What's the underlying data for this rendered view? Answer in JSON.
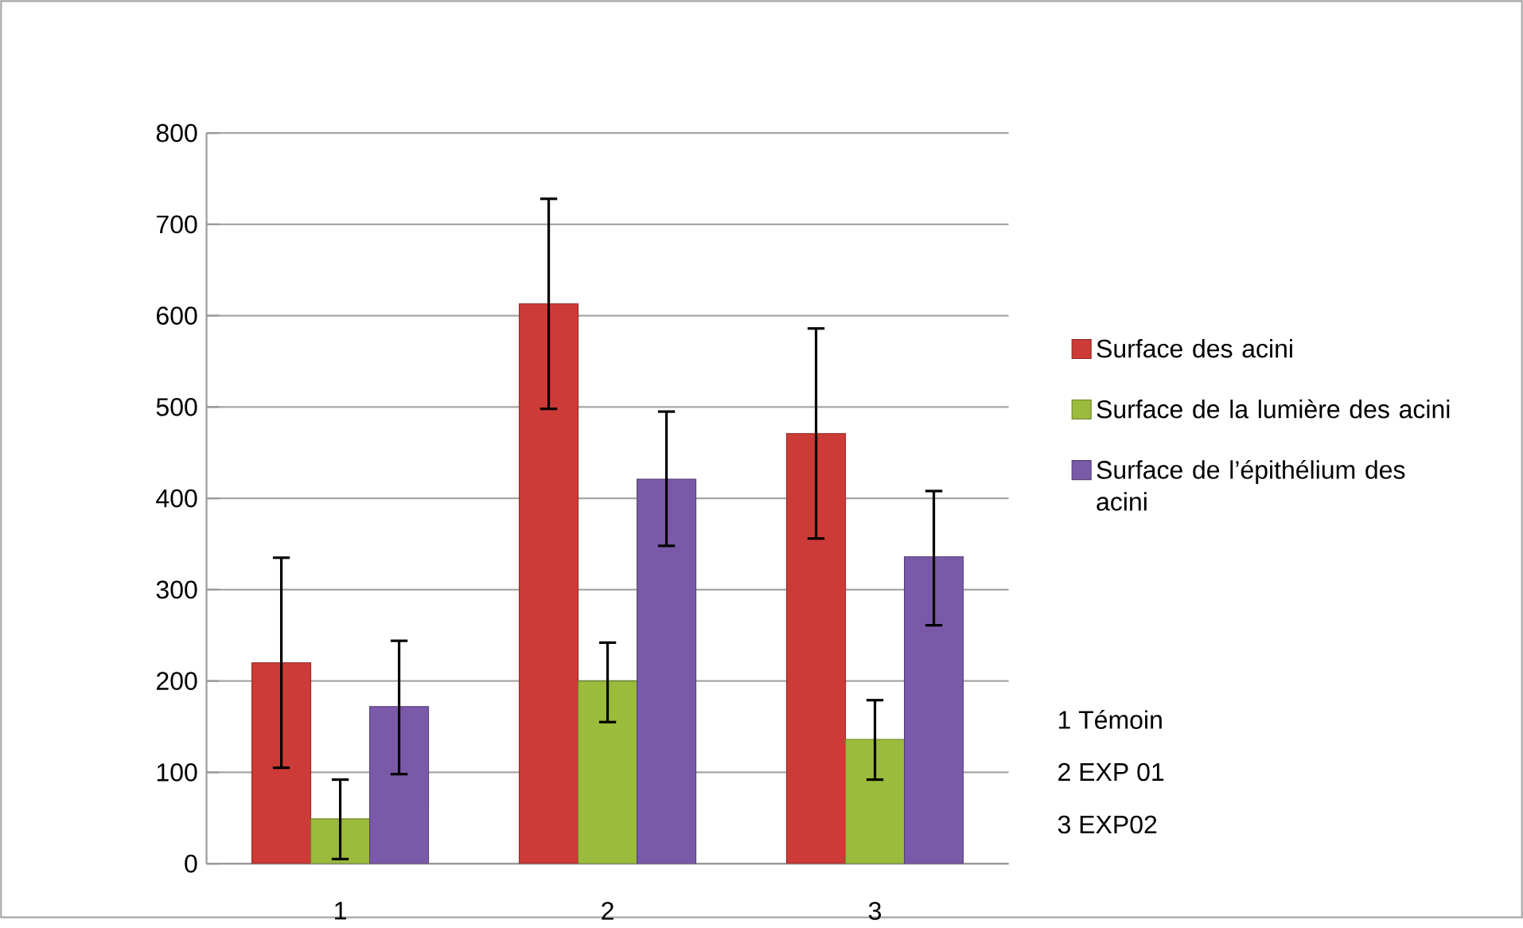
{
  "chart_data": {
    "type": "bar",
    "categories": [
      "1",
      "2",
      "3"
    ],
    "series": [
      {
        "name": "Surface des acini",
        "color": "#cc3b37",
        "values": [
          220,
          613,
          471
        ],
        "errors": [
          [
            105,
            335
          ],
          [
            498,
            728
          ],
          [
            356,
            586
          ]
        ]
      },
      {
        "name": "Surface de la lumière des acini",
        "color": "#9bbb3c",
        "values": [
          49,
          200,
          136
        ],
        "errors": [
          [
            5,
            92
          ],
          [
            155,
            242
          ],
          [
            92,
            179
          ]
        ]
      },
      {
        "name": "Surface de l’épithélium des acini",
        "color": "#7a5aa8",
        "values": [
          172,
          421,
          336
        ],
        "errors": [
          [
            98,
            244
          ],
          [
            348,
            495
          ],
          [
            261,
            408
          ]
        ]
      }
    ],
    "ylim": [
      0,
      800
    ],
    "yticks": [
      0,
      100,
      200,
      300,
      400,
      500,
      600,
      700,
      800
    ],
    "grid": "y",
    "legend": "right",
    "annotations": [
      "1 Témoin",
      "2 EXP 01",
      "3 EXP02"
    ]
  }
}
